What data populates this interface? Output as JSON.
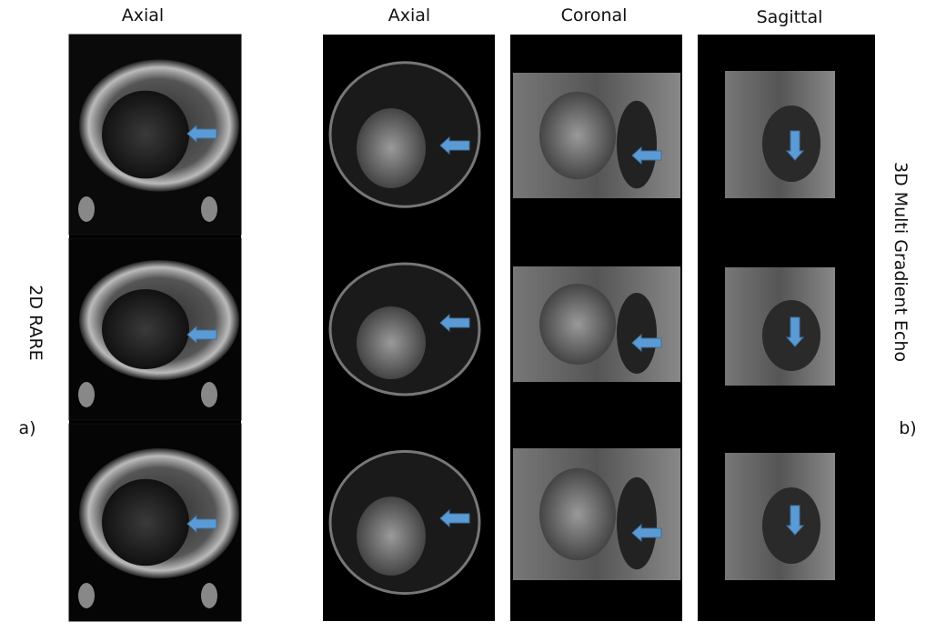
{
  "columns": [
    {
      "label": "Axial"
    },
    {
      "label": "Axial"
    },
    {
      "label": "Coronal"
    },
    {
      "label": "Sagittal"
    }
  ],
  "left_group": {
    "label": "2D RARE",
    "panel": "a)"
  },
  "right_group": {
    "label": "3D Multi Gradient Echo",
    "panel": "b)"
  }
}
